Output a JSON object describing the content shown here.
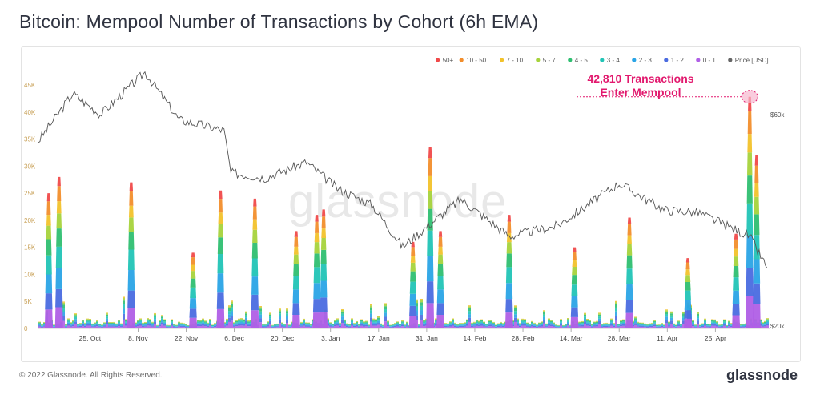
{
  "header": {
    "title": "Bitcoin: Mempool Number of Transactions by Cohort (6h EMA)"
  },
  "footer": {
    "copyright": "© 2022 Glassnode. All Rights Reserved.",
    "brand": "glassnode"
  },
  "watermark": "glassnode",
  "annotation": {
    "line1": "42,810 Transactions",
    "line2": "Enter Mempool",
    "value": 42810,
    "color": "#e2196e"
  },
  "legend": [
    {
      "label": "50+",
      "color": "#f04a4a"
    },
    {
      "label": "10 - 50",
      "color": "#f28e2c"
    },
    {
      "label": "7 - 10",
      "color": "#f2c22b"
    },
    {
      "label": "5 - 7",
      "color": "#a6d33c"
    },
    {
      "label": "4 - 5",
      "color": "#2fbf71"
    },
    {
      "label": "3 - 4",
      "color": "#22c4b6"
    },
    {
      "label": "2 - 3",
      "color": "#2aa4e6"
    },
    {
      "label": "1 - 2",
      "color": "#4a6be0"
    },
    {
      "label": "0 - 1",
      "color": "#b05fe6"
    },
    {
      "label": "Price [USD]",
      "color": "#666666"
    }
  ],
  "chart_data": {
    "type": "area",
    "title": "Bitcoin: Mempool Number of Transactions by Cohort (6h EMA)",
    "x_ticks": [
      "25. Oct",
      "8. Nov",
      "22. Nov",
      "6. Dec",
      "20. Dec",
      "3. Jan",
      "17. Jan",
      "31. Jan",
      "14. Feb",
      "28. Feb",
      "14. Mar",
      "28. Mar",
      "11. Apr",
      "25. Apr"
    ],
    "y_left_ticks": [
      "0",
      "5K",
      "10K",
      "15K",
      "20K",
      "25K",
      "30K",
      "35K",
      "40K",
      "45K"
    ],
    "y_left_range": [
      0,
      45000
    ],
    "y_right_ticks": [
      "$20k",
      "$60k"
    ],
    "y_right_range_usd": [
      20000,
      65000
    ],
    "grid": false,
    "legend_position": "top-right",
    "spikes": [
      {
        "date": "2021-10-13",
        "total": 25000
      },
      {
        "date": "2021-10-16",
        "total": 28000
      },
      {
        "date": "2021-11-06",
        "total": 27000
      },
      {
        "date": "2021-11-24",
        "total": 14000
      },
      {
        "date": "2021-12-02",
        "total": 25500
      },
      {
        "date": "2021-12-12",
        "total": 24000
      },
      {
        "date": "2021-12-24",
        "total": 18000
      },
      {
        "date": "2021-12-30",
        "total": 21000
      },
      {
        "date": "2022-01-01",
        "total": 22000
      },
      {
        "date": "2022-01-27",
        "total": 16000
      },
      {
        "date": "2022-02-01",
        "total": 33500
      },
      {
        "date": "2022-02-04",
        "total": 18000
      },
      {
        "date": "2022-02-24",
        "total": 21000
      },
      {
        "date": "2022-03-15",
        "total": 15000
      },
      {
        "date": "2022-03-31",
        "total": 20500
      },
      {
        "date": "2022-04-17",
        "total": 13000
      },
      {
        "date": "2022-05-01",
        "total": 17500
      },
      {
        "date": "2022-05-05",
        "total": 42810
      },
      {
        "date": "2022-05-07",
        "total": 32000
      }
    ],
    "price_usd": [
      {
        "date": "2021-10-10",
        "price": 55000
      },
      {
        "date": "2021-10-20",
        "price": 64000
      },
      {
        "date": "2021-10-28",
        "price": 60000
      },
      {
        "date": "2021-11-10",
        "price": 68000
      },
      {
        "date": "2021-11-20",
        "price": 59000
      },
      {
        "date": "2021-12-03",
        "price": 57000
      },
      {
        "date": "2021-12-05",
        "price": 49000
      },
      {
        "date": "2021-12-15",
        "price": 48000
      },
      {
        "date": "2021-12-27",
        "price": 51000
      },
      {
        "date": "2022-01-05",
        "price": 46000
      },
      {
        "date": "2022-01-15",
        "price": 43000
      },
      {
        "date": "2022-01-24",
        "price": 35000
      },
      {
        "date": "2022-02-06",
        "price": 42000
      },
      {
        "date": "2022-02-10",
        "price": 44000
      },
      {
        "date": "2022-02-24",
        "price": 37000
      },
      {
        "date": "2022-03-10",
        "price": 39000
      },
      {
        "date": "2022-03-28",
        "price": 47000
      },
      {
        "date": "2022-04-10",
        "price": 42000
      },
      {
        "date": "2022-04-20",
        "price": 41500
      },
      {
        "date": "2022-05-05",
        "price": 37000
      },
      {
        "date": "2022-05-10",
        "price": 31000
      }
    ]
  }
}
